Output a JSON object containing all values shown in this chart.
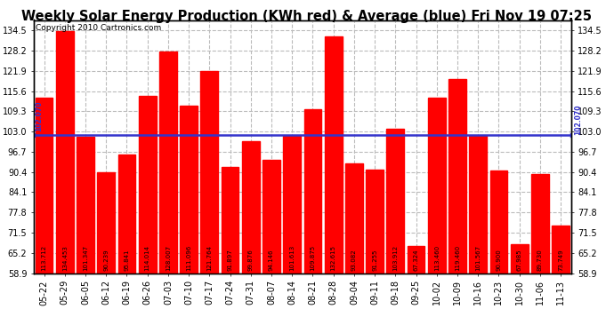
{
  "title": "Weekly Solar Energy Production (KWh red) & Average (blue) Fri Nov 19 07:25",
  "copyright": "Copyright 2010 Cartronics.com",
  "categories": [
    "05-22",
    "05-29",
    "06-05",
    "06-12",
    "06-19",
    "06-26",
    "07-03",
    "07-10",
    "07-17",
    "07-24",
    "07-31",
    "08-07",
    "08-14",
    "08-21",
    "08-28",
    "09-04",
    "09-11",
    "09-18",
    "09-25",
    "10-02",
    "10-09",
    "10-16",
    "10-23",
    "10-30",
    "11-06",
    "11-13"
  ],
  "values": [
    113.712,
    134.453,
    101.347,
    90.239,
    95.841,
    114.014,
    128.007,
    111.096,
    121.764,
    91.897,
    99.876,
    94.146,
    101.613,
    109.875,
    132.615,
    93.082,
    91.255,
    103.912,
    67.324,
    113.46,
    119.46,
    101.567,
    90.9,
    67.985,
    89.73,
    73.749
  ],
  "average": 102.07,
  "bar_color": "#ff0000",
  "avg_line_color": "#3333cc",
  "avg_label": "102.070",
  "ylim_min": 58.9,
  "ylim_max": 137.8,
  "yticks": [
    58.9,
    65.2,
    71.5,
    77.8,
    84.1,
    90.4,
    96.7,
    103.0,
    109.3,
    115.6,
    121.9,
    128.2,
    134.5
  ],
  "background_color": "#ffffff",
  "grid_color": "#bbbbbb",
  "title_fontsize": 10.5,
  "bar_width": 0.85,
  "value_fontsize": 5.0,
  "label_fontsize": 7.0,
  "copyright_fontsize": 6.5
}
